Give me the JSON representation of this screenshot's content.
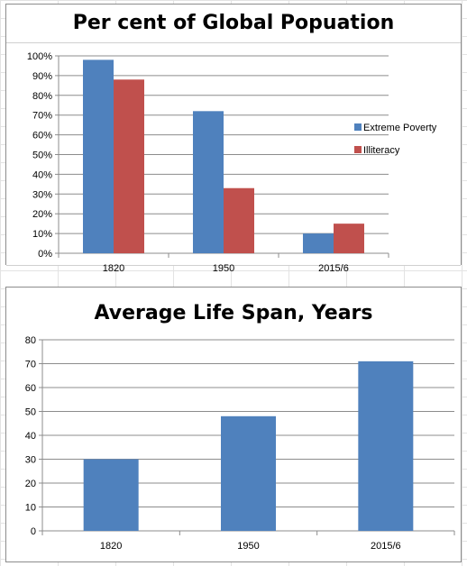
{
  "chart_data": [
    {
      "type": "bar",
      "title": "Per cent of Global Popuation",
      "categories": [
        "1820",
        "1950",
        "2015/6"
      ],
      "series": [
        {
          "name": "Extreme Poverty",
          "color": "#4f81bd",
          "values": [
            98,
            72,
            10
          ]
        },
        {
          "name": "Illiteracy",
          "color": "#c0504d",
          "values": [
            88,
            33,
            15
          ]
        }
      ],
      "ylim": [
        0,
        100
      ],
      "yticks": [
        0,
        10,
        20,
        30,
        40,
        50,
        60,
        70,
        80,
        90,
        100
      ],
      "ytick_labels": [
        "0%",
        "10%",
        "20%",
        "30%",
        "40%",
        "50%",
        "60%",
        "70%",
        "80%",
        "90%",
        "100%"
      ],
      "grid": true,
      "legend": "right"
    },
    {
      "type": "bar",
      "title": "Average Life Span, Years",
      "categories": [
        "1820",
        "1950",
        "2015/6"
      ],
      "series": [
        {
          "color": "#4f81bd",
          "values": [
            30,
            48,
            71
          ]
        }
      ],
      "ylim": [
        0,
        80
      ],
      "yticks": [
        0,
        10,
        20,
        30,
        40,
        50,
        60,
        70,
        80
      ],
      "ytick_labels": [
        "0",
        "10",
        "20",
        "30",
        "40",
        "50",
        "60",
        "70",
        "80"
      ],
      "grid": true,
      "legend": "none"
    }
  ]
}
